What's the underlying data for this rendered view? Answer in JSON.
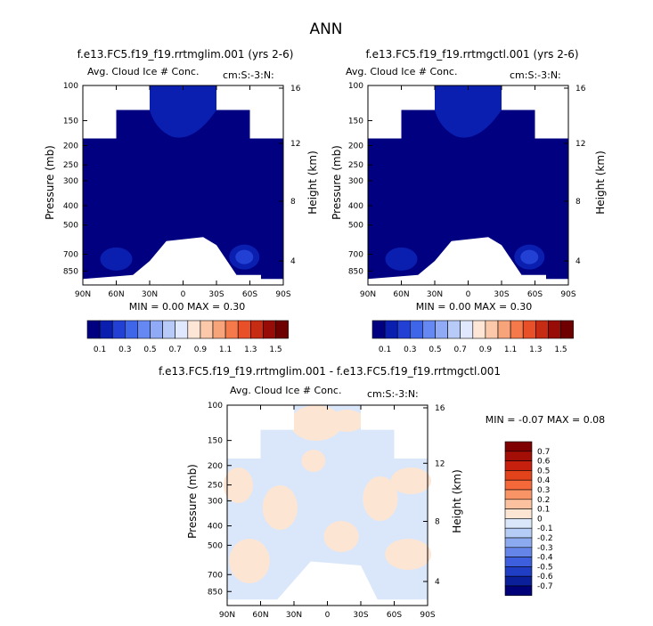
{
  "page": {
    "title": "ANN"
  },
  "chart_data": [
    {
      "type": "heatmap",
      "title": "f.e13.FC5.f19_f19.rrtmglim.001 (yrs 2-6)",
      "subtitle": "Avg. Cloud Ice # Conc.",
      "units": "cm:S:-3:N:",
      "xlabel": "",
      "ylabel": "Pressure (mb)",
      "ylabel_right": "Height (km)",
      "x_ticks": [
        "90N",
        "60N",
        "30N",
        "0",
        "30S",
        "60S",
        "90S"
      ],
      "y_ticks": [
        "100",
        "150",
        "200",
        "250",
        "300",
        "400",
        "500",
        "700",
        "850"
      ],
      "y_right_ticks": [
        "16",
        "12",
        "8",
        "4"
      ],
      "min_max": "MIN =   0.00   MAX =   0.30",
      "colorbar_labels": [
        "0.1",
        "0.3",
        "0.5",
        "0.7",
        "0.9",
        "1.1",
        "1.3",
        "1.5"
      ],
      "regions": [
        {
          "name": "upper-cap",
          "lat": [
            -30,
            30
          ],
          "p": [
            100,
            150
          ],
          "value": 0.15
        },
        {
          "name": "body",
          "lat": [
            -90,
            90
          ],
          "p": [
            200,
            850
          ],
          "value": 0.05
        },
        {
          "name": "nh-max",
          "lat": [
            50,
            70
          ],
          "p": [
            650,
            800
          ],
          "value": 0.15
        },
        {
          "name": "sh-max",
          "lat": [
            -65,
            -45
          ],
          "p": [
            600,
            800
          ],
          "value": 0.3
        }
      ]
    },
    {
      "type": "heatmap",
      "title": "f.e13.FC5.f19_f19.rrtmgctl.001 (yrs 2-6)",
      "subtitle": "Avg. Cloud Ice # Conc.",
      "units": "cm:S:-3:N:",
      "xlabel": "",
      "ylabel": "Pressure (mb)",
      "ylabel_right": "Height (km)",
      "x_ticks": [
        "90N",
        "60N",
        "30N",
        "0",
        "30S",
        "60S",
        "90S"
      ],
      "y_ticks": [
        "100",
        "150",
        "200",
        "250",
        "300",
        "400",
        "500",
        "700",
        "850"
      ],
      "y_right_ticks": [
        "16",
        "12",
        "8",
        "4"
      ],
      "min_max": "MIN =   0.00   MAX =   0.30",
      "colorbar_labels": [
        "0.1",
        "0.3",
        "0.5",
        "0.7",
        "0.9",
        "1.1",
        "1.3",
        "1.5"
      ],
      "regions": [
        {
          "name": "upper-cap",
          "lat": [
            -30,
            30
          ],
          "p": [
            100,
            150
          ],
          "value": 0.15
        },
        {
          "name": "body",
          "lat": [
            -90,
            90
          ],
          "p": [
            200,
            850
          ],
          "value": 0.05
        },
        {
          "name": "nh-max",
          "lat": [
            50,
            70
          ],
          "p": [
            650,
            800
          ],
          "value": 0.15
        },
        {
          "name": "sh-max",
          "lat": [
            -65,
            -45
          ],
          "p": [
            600,
            800
          ],
          "value": 0.3
        }
      ]
    },
    {
      "type": "heatmap",
      "title": "f.e13.FC5.f19_f19.rrtmglim.001 - f.e13.FC5.f19_f19.rrtmgctl.001",
      "subtitle": "Avg. Cloud Ice # Conc.",
      "units": "cm:S:-3:N:",
      "xlabel": "",
      "ylabel": "Pressure (mb)",
      "ylabel_right": "Height (km)",
      "x_ticks": [
        "90N",
        "60N",
        "30N",
        "0",
        "30S",
        "60S",
        "90S"
      ],
      "y_ticks": [
        "100",
        "150",
        "200",
        "250",
        "300",
        "400",
        "500",
        "700",
        "850"
      ],
      "y_right_ticks": [
        "16",
        "12",
        "8",
        "4"
      ],
      "min_max": "MIN =  -0.07   MAX =   0.08",
      "colorbar_labels": [
        "0.7",
        "0.6",
        "0.5",
        "0.4",
        "0.3",
        "0.2",
        "0.1",
        "0",
        "-0.1",
        "-0.2",
        "-0.3",
        "-0.4",
        "-0.5",
        "-0.6",
        "-0.7"
      ],
      "value_range": [
        -0.07,
        0.08
      ]
    }
  ],
  "colors": {
    "seq": [
      "#000080",
      "#0a1fb0",
      "#2241d4",
      "#3f66e8",
      "#6688f2",
      "#90aaf6",
      "#b8caf8",
      "#dfe8fc",
      "#fde6d6",
      "#fbc9aa",
      "#f8a47a",
      "#f47a4c",
      "#e8502a",
      "#c62b14",
      "#980c08",
      "#6e0000"
    ],
    "diff": [
      "#7e0000",
      "#a30e06",
      "#c8200f",
      "#e3431b",
      "#f4683a",
      "#f99466",
      "#fcc19f",
      "#fde5d3",
      "#dae7fb",
      "#b5ccf6",
      "#8caaf0",
      "#6585e8",
      "#3d5fdd",
      "#1f3ec4",
      "#0b1f9a",
      "#000078"
    ]
  }
}
